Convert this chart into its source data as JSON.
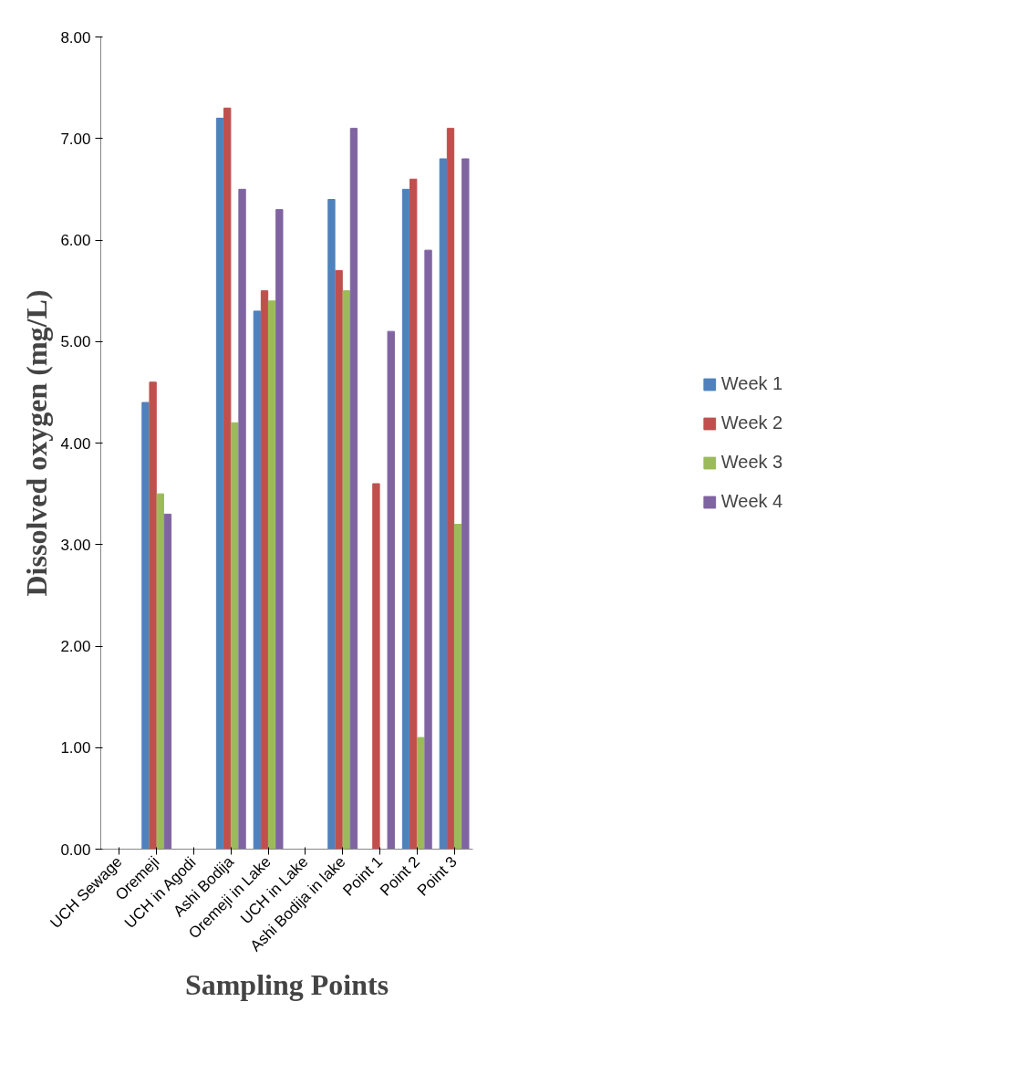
{
  "chart_data": {
    "type": "bar",
    "xlabel": "Sampling Points",
    "ylabel": "Dissolved oxygen (mg/L)",
    "categories": [
      "UCH Sewage",
      "Oremeji",
      "UCH in Agodi",
      "Ashi Bodija",
      "Oremeji in Lake",
      "UCH in Lake",
      "Ashi Bodija in lake",
      "Point 1",
      "Point 2",
      "Point 3"
    ],
    "series": [
      {
        "name": "Week 1",
        "color": "#4f81bd",
        "values": [
          0,
          4.4,
          0,
          7.2,
          5.3,
          0,
          6.4,
          0,
          6.5,
          6.8
        ]
      },
      {
        "name": "Week 2",
        "color": "#c0504d",
        "values": [
          0,
          4.6,
          0,
          7.3,
          5.5,
          0,
          5.7,
          3.6,
          6.6,
          7.1
        ]
      },
      {
        "name": "Week 3",
        "color": "#9bbb59",
        "values": [
          0,
          3.5,
          0,
          4.2,
          5.4,
          0,
          5.5,
          0,
          1.1,
          3.2
        ]
      },
      {
        "name": "Week 4",
        "color": "#8064a2",
        "values": [
          0,
          3.3,
          0,
          6.5,
          6.3,
          0,
          7.1,
          5.1,
          5.9,
          6.8
        ]
      }
    ],
    "ylim": [
      0,
      8
    ],
    "yticks": [
      {
        "value": 0,
        "label": "0.00"
      },
      {
        "value": 1,
        "label": "1.00"
      },
      {
        "value": 2,
        "label": "2.00"
      },
      {
        "value": 3,
        "label": "3.00"
      },
      {
        "value": 4,
        "label": "4.00"
      },
      {
        "value": 5,
        "label": "5.00"
      },
      {
        "value": 6,
        "label": "6.00"
      },
      {
        "value": 7,
        "label": "7.00"
      },
      {
        "value": 8,
        "label": "8.00"
      }
    ],
    "grid": false,
    "legend": "right"
  }
}
